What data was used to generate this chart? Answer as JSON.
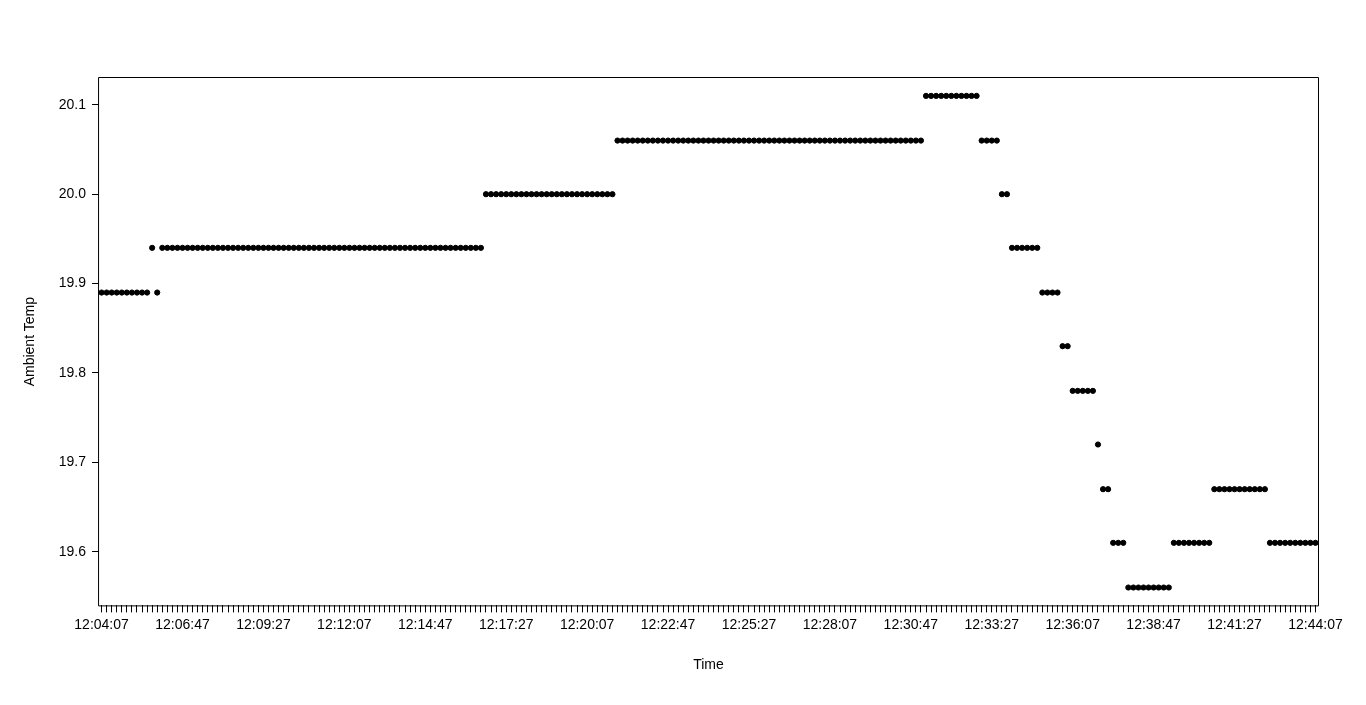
{
  "chart_data": {
    "type": "scatter",
    "xlabel": "Time",
    "ylabel": "Ambient Temp",
    "marker": "circle",
    "grid": false,
    "legend": false,
    "categories": [
      "12:04:07",
      null,
      null,
      null,
      null,
      null,
      null,
      null,
      null,
      null,
      null,
      null,
      null,
      null,
      null,
      null,
      "12:06:47",
      null,
      null,
      null,
      null,
      null,
      null,
      null,
      null,
      null,
      null,
      null,
      null,
      null,
      null,
      null,
      "12:09:27",
      null,
      null,
      null,
      null,
      null,
      null,
      null,
      null,
      null,
      null,
      null,
      null,
      null,
      null,
      null,
      "12:12:07",
      null,
      null,
      null,
      null,
      null,
      null,
      null,
      null,
      null,
      null,
      null,
      null,
      null,
      null,
      null,
      "12:14:47",
      null,
      null,
      null,
      null,
      null,
      null,
      null,
      null,
      null,
      null,
      null,
      null,
      null,
      null,
      null,
      "12:17:27",
      null,
      null,
      null,
      null,
      null,
      null,
      null,
      null,
      null,
      null,
      null,
      null,
      null,
      null,
      null,
      "12:20:07",
      null,
      null,
      null,
      null,
      null,
      null,
      null,
      null,
      null,
      null,
      null,
      null,
      null,
      null,
      null,
      "12:22:47",
      null,
      null,
      null,
      null,
      null,
      null,
      null,
      null,
      null,
      null,
      null,
      null,
      null,
      null,
      null,
      "12:25:27",
      null,
      null,
      null,
      null,
      null,
      null,
      null,
      null,
      null,
      null,
      null,
      null,
      null,
      null,
      null,
      "12:28:07",
      null,
      null,
      null,
      null,
      null,
      null,
      null,
      null,
      null,
      null,
      null,
      null,
      null,
      null,
      null,
      "12:30:47",
      null,
      null,
      null,
      null,
      null,
      null,
      null,
      null,
      null,
      null,
      null,
      null,
      null,
      null,
      null,
      "12:33:27",
      null,
      null,
      null,
      null,
      null,
      null,
      null,
      null,
      null,
      null,
      null,
      null,
      null,
      null,
      null,
      "12:36:07",
      null,
      null,
      null,
      null,
      null,
      null,
      null,
      null,
      null,
      null,
      null,
      null,
      null,
      null,
      null,
      "12:38:47",
      null,
      null,
      null,
      null,
      null,
      null,
      null,
      null,
      null,
      null,
      null,
      null,
      null,
      null,
      null,
      "12:41:27",
      null,
      null,
      null,
      null,
      null,
      null,
      null,
      null,
      null,
      null,
      null,
      null,
      null,
      null,
      null,
      "12:44:07"
    ],
    "series": [
      {
        "color": "#000000",
        "values": [
          19.89,
          19.89,
          19.89,
          19.89,
          19.89,
          19.89,
          19.89,
          19.89,
          19.89,
          19.89,
          19.94,
          19.89,
          19.94,
          19.94,
          19.94,
          19.94,
          19.94,
          19.94,
          19.94,
          19.94,
          19.94,
          19.94,
          19.94,
          19.94,
          19.94,
          19.94,
          19.94,
          19.94,
          19.94,
          19.94,
          19.94,
          19.94,
          19.94,
          19.94,
          19.94,
          19.94,
          19.94,
          19.94,
          19.94,
          19.94,
          19.94,
          19.94,
          19.94,
          19.94,
          19.94,
          19.94,
          19.94,
          19.94,
          19.94,
          19.94,
          19.94,
          19.94,
          19.94,
          19.94,
          19.94,
          19.94,
          19.94,
          19.94,
          19.94,
          19.94,
          19.94,
          19.94,
          19.94,
          19.94,
          19.94,
          19.94,
          19.94,
          19.94,
          19.94,
          19.94,
          19.94,
          19.94,
          19.94,
          19.94,
          19.94,
          19.94,
          20.0,
          20.0,
          20.0,
          20.0,
          20.0,
          20.0,
          20.0,
          20.0,
          20.0,
          20.0,
          20.0,
          20.0,
          20.0,
          20.0,
          20.0,
          20.0,
          20.0,
          20.0,
          20.0,
          20.0,
          20.0,
          20.0,
          20.0,
          20.0,
          20.0,
          20.0,
          20.06,
          20.06,
          20.06,
          20.06,
          20.06,
          20.06,
          20.06,
          20.06,
          20.06,
          20.06,
          20.06,
          20.06,
          20.06,
          20.06,
          20.06,
          20.06,
          20.06,
          20.06,
          20.06,
          20.06,
          20.06,
          20.06,
          20.06,
          20.06,
          20.06,
          20.06,
          20.06,
          20.06,
          20.06,
          20.06,
          20.06,
          20.06,
          20.06,
          20.06,
          20.06,
          20.06,
          20.06,
          20.06,
          20.06,
          20.06,
          20.06,
          20.06,
          20.06,
          20.06,
          20.06,
          20.06,
          20.06,
          20.06,
          20.06,
          20.06,
          20.06,
          20.06,
          20.06,
          20.06,
          20.06,
          20.06,
          20.06,
          20.06,
          20.06,
          20.06,
          20.06,
          20.11,
          20.11,
          20.11,
          20.11,
          20.11,
          20.11,
          20.11,
          20.11,
          20.11,
          20.11,
          20.11,
          20.06,
          20.06,
          20.06,
          20.06,
          20.0,
          20.0,
          19.94,
          19.94,
          19.94,
          19.94,
          19.94,
          19.94,
          19.89,
          19.89,
          19.89,
          19.89,
          19.83,
          19.83,
          19.78,
          19.78,
          19.78,
          19.78,
          19.78,
          19.72,
          19.67,
          19.67,
          19.61,
          19.61,
          19.61,
          19.56,
          19.56,
          19.56,
          19.56,
          19.56,
          19.56,
          19.56,
          19.56,
          19.56,
          19.61,
          19.61,
          19.61,
          19.61,
          19.61,
          19.61,
          19.61,
          19.61,
          19.67,
          19.67,
          19.67,
          19.67,
          19.67,
          19.67,
          19.67,
          19.67,
          19.67,
          19.67,
          19.67,
          19.61,
          19.61,
          19.61,
          19.61,
          19.61,
          19.61,
          19.61,
          19.61,
          19.61,
          19.61
        ]
      }
    ],
    "ylim": [
      19.54,
      20.13
    ],
    "yticks": [
      19.6,
      19.7,
      19.8,
      19.9,
      {
        "value": 20,
        "label": "20.0"
      },
      20.1
    ]
  }
}
